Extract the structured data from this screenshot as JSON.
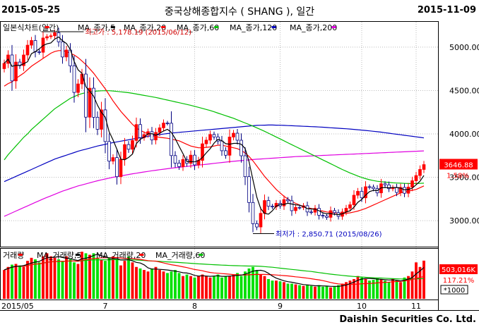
{
  "header": {
    "start_date": "2015-05-25",
    "end_date": "2015-11-09",
    "title": "중국상해종합지수 ( SHANG ),  일간"
  },
  "legend": {
    "price": {
      "label": "일본식차트(일간)",
      "color": "#ff0000"
    },
    "ma5": {
      "label": "MA_종가,5",
      "color": "#000000"
    },
    "ma20": {
      "label": "MA_종가,20",
      "color": "#ff0000"
    },
    "ma60": {
      "label": "MA_종가,60",
      "color": "#00c000"
    },
    "ma120": {
      "label": "MA_종가,120",
      "color": "#0000c0"
    },
    "ma200": {
      "label": "MA_종가,200",
      "color": "#e000e0"
    }
  },
  "volume_legend": {
    "vol": {
      "label": "거래량",
      "color": "#ff0000"
    },
    "vma5": {
      "label": "MA_거래량,5",
      "color": "#000000"
    },
    "vma20": {
      "label": "MA_거래량,20",
      "color": "#ff0000"
    },
    "vma60": {
      "label": "MA_거래량,60",
      "color": "#00c000"
    }
  },
  "annotations": {
    "high": "최고가 : 5,178.19 (2015/06/12)",
    "low": "최저가 : 2,850.71 (2015/08/26)"
  },
  "price_axis": {
    "ticks": [
      "5000.00",
      "4500.00",
      "4000.00",
      "3500.00",
      "3000.00"
    ],
    "current": "3646.88",
    "change": "1.58%"
  },
  "volume_axis": {
    "current": "503,016K",
    "change": "117.21%",
    "unit": "*1000"
  },
  "x_ticks": [
    "2015/05",
    "7",
    "8",
    "9",
    "10",
    "11"
  ],
  "footer": {
    "brand": "Daishin Securities Co. Ltd."
  },
  "chart_data": {
    "type": "candlestick",
    "title": "중국상해종합지수 ( SHANG ),  일간",
    "ylim": [
      2700,
      5300
    ],
    "y_ticks": [
      5000,
      4500,
      4000,
      3500,
      3000
    ],
    "x_tick_labels": [
      "2015/05",
      "7",
      "8",
      "9",
      "10",
      "11"
    ],
    "high": {
      "value": 5178.19,
      "date": "2015/06/12"
    },
    "low": {
      "value": 2850.71,
      "date": "2015/08/26"
    },
    "last_close": 3646.88,
    "last_change_pct": 1.58,
    "close": [
      4813,
      4910,
      4611,
      4828,
      4787,
      4910,
      5023,
      5077,
      4947,
      4941,
      5106,
      5121,
      5131,
      5166,
      5062,
      4887,
      4967,
      4785,
      4478,
      4576,
      4690,
      4193,
      4527,
      4192,
      4053,
      4277,
      3912,
      3686,
      3727,
      3507,
      3709,
      3877,
      3823,
      3924,
      4108,
      3957,
      3992,
      4026,
      3930,
      4017,
      4070,
      4125,
      4123,
      3750,
      3663,
      3623,
      3705,
      3661,
      3755,
      3643,
      3695,
      3886,
      3928,
      3993,
      3965,
      3918,
      3806,
      3754,
      3964,
      4008,
      3927,
      3748,
      3507,
      3209,
      2965,
      2927,
      3084,
      3232,
      3166,
      3160,
      3200,
      3170,
      3243,
      3229,
      3115,
      3153,
      3152,
      3172,
      3100,
      3097,
      3142,
      3062,
      3053,
      3038,
      3115,
      3092,
      3050,
      3100,
      3143,
      3183,
      3293,
      3338,
      3263,
      3391,
      3386,
      3369,
      3320,
      3425,
      3412,
      3368,
      3382,
      3325,
      3383,
      3316,
      3387,
      3460,
      3520,
      3590,
      3646
    ],
    "open": [
      4752,
      4813,
      4910,
      4611,
      4828,
      4787,
      4910,
      5023,
      5077,
      4947,
      4941,
      5106,
      5121,
      5131,
      5166,
      5062,
      4887,
      4967,
      4785,
      4478,
      4576,
      4690,
      4193,
      4527,
      4192,
      4053,
      4277,
      3912,
      3686,
      3727,
      3507,
      3709,
      3877,
      3823,
      3924,
      4108,
      3957,
      3992,
      4026,
      3930,
      4017,
      4070,
      4125,
      4123,
      3750,
      3663,
      3623,
      3705,
      3661,
      3755,
      3643,
      3695,
      3886,
      3928,
      3993,
      3965,
      3918,
      3806,
      3754,
      3964,
      4008,
      3927,
      3748,
      3507,
      3209,
      2965,
      2927,
      3084,
      3232,
      3166,
      3160,
      3200,
      3170,
      3243,
      3229,
      3115,
      3153,
      3152,
      3172,
      3100,
      3097,
      3142,
      3062,
      3053,
      3038,
      3115,
      3092,
      3050,
      3100,
      3143,
      3183,
      3293,
      3338,
      3263,
      3391,
      3386,
      3369,
      3320,
      3425,
      3412,
      3368,
      3382,
      3325,
      3383,
      3316,
      3387,
      3460,
      3520,
      3590
    ],
    "ma20": [
      4550,
      4580,
      4600,
      4640,
      4670,
      4700,
      4740,
      4780,
      4810,
      4840,
      4870,
      4900,
      4930,
      4950,
      4960,
      4960,
      4950,
      4930,
      4910,
      4880,
      4840,
      4800,
      4750,
      4700,
      4640,
      4580,
      4520,
      4450,
      4380,
      4320,
      4260,
      4210,
      4160,
      4110,
      4070,
      4040,
      4020,
      4000,
      3980,
      3970,
      3960,
      3955,
      3950,
      3940,
      3930,
      3920,
      3900,
      3880,
      3860,
      3850,
      3840,
      3840,
      3845,
      3850,
      3860,
      3870,
      3870,
      3860,
      3850,
      3840,
      3830,
      3810,
      3780,
      3740,
      3690,
      3630,
      3570,
      3510,
      3460,
      3410,
      3360,
      3320,
      3280,
      3250,
      3220,
      3200,
      3180,
      3160,
      3150,
      3140,
      3130,
      3120,
      3110,
      3100,
      3095,
      3090,
      3085,
      3080,
      3085,
      3090,
      3100,
      3110,
      3125,
      3140,
      3160,
      3180,
      3200,
      3220,
      3240,
      3260,
      3280,
      3300,
      3320,
      3330,
      3340,
      3350,
      3360,
      3380,
      3400
    ],
    "ma60": [
      3700,
      3760,
      3810,
      3860,
      3910,
      3960,
      4000,
      4050,
      4090,
      4130,
      4170,
      4210,
      4250,
      4290,
      4320,
      4350,
      4380,
      4410,
      4430,
      4450,
      4465,
      4475,
      4485,
      4490,
      4495,
      4497,
      4498,
      4498,
      4495,
      4490,
      4485,
      4480,
      4475,
      4468,
      4460,
      4452,
      4444,
      4436,
      4428,
      4420,
      4410,
      4400,
      4390,
      4380,
      4370,
      4360,
      4350,
      4340,
      4330,
      4318,
      4306,
      4294,
      4282,
      4270,
      4255,
      4240,
      4225,
      4210,
      4195,
      4180,
      4162,
      4144,
      4126,
      4108,
      4090,
      4070,
      4050,
      4030,
      4008,
      3986,
      3964,
      3942,
      3920,
      3898,
      3876,
      3854,
      3832,
      3810,
      3788,
      3766,
      3744,
      3722,
      3700,
      3678,
      3656,
      3634,
      3612,
      3590,
      3570,
      3550,
      3532,
      3514,
      3498,
      3484,
      3472,
      3462,
      3454,
      3448,
      3444,
      3440,
      3436,
      3434,
      3432,
      3430,
      3428,
      3428,
      3428,
      3430,
      3432
    ],
    "ma120": [
      3450,
      3470,
      3490,
      3510,
      3530,
      3550,
      3570,
      3590,
      3610,
      3630,
      3650,
      3670,
      3690,
      3710,
      3725,
      3740,
      3755,
      3770,
      3785,
      3800,
      3812,
      3824,
      3836,
      3848,
      3860,
      3870,
      3880,
      3890,
      3900,
      3908,
      3916,
      3924,
      3932,
      3940,
      3948,
      3956,
      3964,
      3972,
      3980,
      3986,
      3992,
      3998,
      4004,
      4010,
      4014,
      4018,
      4022,
      4026,
      4030,
      4034,
      4038,
      4042,
      4046,
      4050,
      4054,
      4058,
      4062,
      4066,
      4070,
      4074,
      4078,
      4082,
      4086,
      4090,
      4094,
      4098,
      4100,
      4101,
      4102,
      4102,
      4101,
      4100,
      4098,
      4096,
      4094,
      4092,
      4090,
      4088,
      4086,
      4084,
      4082,
      4080,
      4077,
      4074,
      4071,
      4068,
      4065,
      4062,
      4059,
      4056,
      4052,
      4048,
      4044,
      4040,
      4035,
      4030,
      4025,
      4020,
      4014,
      4008,
      4002,
      3996,
      3990,
      3984,
      3978,
      3972,
      3966,
      3960,
      3954
    ],
    "ma200": [
      3050,
      3070,
      3090,
      3110,
      3130,
      3150,
      3170,
      3190,
      3210,
      3230,
      3250,
      3268,
      3286,
      3304,
      3322,
      3340,
      3355,
      3370,
      3385,
      3400,
      3412,
      3424,
      3436,
      3448,
      3460,
      3470,
      3480,
      3490,
      3500,
      3508,
      3516,
      3524,
      3532,
      3540,
      3547,
      3554,
      3561,
      3568,
      3575,
      3581,
      3587,
      3593,
      3599,
      3605,
      3610,
      3615,
      3620,
      3625,
      3630,
      3635,
      3640,
      3645,
      3650,
      3655,
      3660,
      3665,
      3670,
      3675,
      3680,
      3684,
      3688,
      3692,
      3696,
      3700,
      3704,
      3708,
      3711,
      3714,
      3717,
      3720,
      3723,
      3726,
      3729,
      3732,
      3735,
      3738,
      3740,
      3742,
      3744,
      3746,
      3748,
      3750,
      3752,
      3754,
      3756,
      3758,
      3760,
      3762,
      3764,
      3766,
      3768,
      3770,
      3772,
      3774,
      3776,
      3778,
      3780,
      3782,
      3784,
      3786,
      3788,
      3790,
      3792,
      3794,
      3796,
      3798,
      3800,
      3802,
      3804
    ],
    "volume": [
      380,
      420,
      450,
      460,
      440,
      420,
      500,
      540,
      520,
      480,
      560,
      600,
      560,
      540,
      520,
      500,
      560,
      520,
      480,
      460,
      620,
      600,
      580,
      600,
      540,
      520,
      500,
      540,
      560,
      520,
      440,
      500,
      560,
      480,
      420,
      400,
      380,
      360,
      400,
      420,
      380,
      360,
      340,
      360,
      380,
      340,
      300,
      320,
      300,
      280,
      300,
      320,
      300,
      280,
      300,
      320,
      280,
      300,
      300,
      320,
      340,
      300,
      360,
      400,
      420,
      380,
      320,
      300,
      260,
      240,
      240,
      230,
      220,
      200,
      200,
      190,
      180,
      170,
      180,
      170,
      160,
      180,
      160,
      170,
      150,
      160,
      180,
      200,
      220,
      240,
      260,
      300,
      280,
      260,
      240,
      250,
      270,
      260,
      240,
      220,
      260,
      240,
      220,
      280,
      300,
      360,
      480,
      420,
      503
    ],
    "volume_unit": "K",
    "volume_change_pct": 117.21
  }
}
